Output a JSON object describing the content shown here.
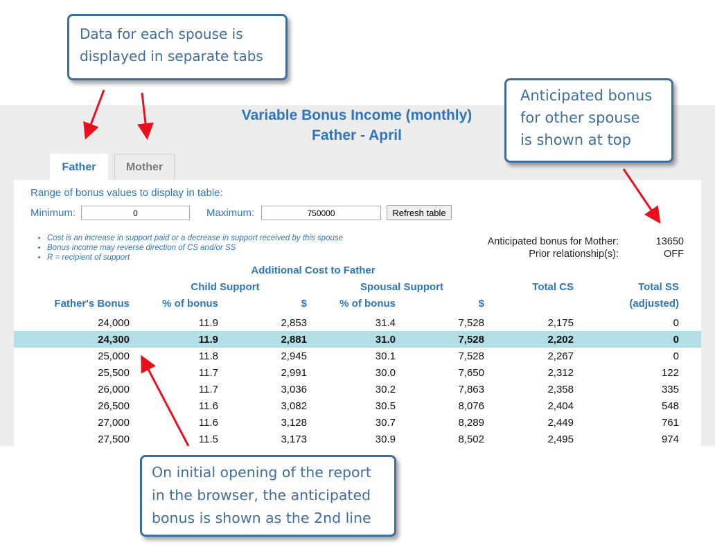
{
  "report": {
    "title_line1": "Variable Bonus Income (monthly)",
    "title_line2": "Father - April"
  },
  "tabs": [
    {
      "label": "Father",
      "active": true
    },
    {
      "label": "Mother",
      "active": false
    }
  ],
  "range": {
    "label": "Range of bonus values to display in table:",
    "min_label": "Minimum:",
    "min_value": "0",
    "max_label": "Maximum:",
    "max_value": "750000",
    "refresh_label": "Refresh table"
  },
  "notes": [
    "Cost is an increase in support paid or a decrease in support received by this spouse",
    "Bonus income may reverse direction of CS and/or SS",
    "R = recipient of support"
  ],
  "anticipated": {
    "bonus_label": "Anticipated bonus for Mother:",
    "bonus_value": "13650",
    "prior_label": "Prior relationship(s):",
    "prior_value": "OFF"
  },
  "table": {
    "group_title": "Additional Cost to Father",
    "child_support": "Child Support",
    "spousal_support": "Spousal Support",
    "total_cs": "Total CS",
    "total_ss": "Total SS",
    "col_bonus": "Father's Bonus",
    "col_cs_pct": "% of bonus",
    "col_cs_amt": "$",
    "col_ss_pct": "% of bonus",
    "col_ss_amt": "$",
    "col_ss_adj": "(adjusted)",
    "rows": [
      {
        "bonus": "24,000",
        "cs_pct": "11.9",
        "cs_amt": "2,853",
        "ss_pct": "31.4",
        "ss_amt": "7,528",
        "total_cs": "2,175",
        "total_ss": "0"
      },
      {
        "bonus": "24,300",
        "cs_pct": "11.9",
        "cs_amt": "2,881",
        "ss_pct": "31.0",
        "ss_amt": "7,528",
        "total_cs": "2,202",
        "total_ss": "0"
      },
      {
        "bonus": "25,000",
        "cs_pct": "11.8",
        "cs_amt": "2,945",
        "ss_pct": "30.1",
        "ss_amt": "7,528",
        "total_cs": "2,267",
        "total_ss": "0"
      },
      {
        "bonus": "25,500",
        "cs_pct": "11.7",
        "cs_amt": "2,991",
        "ss_pct": "30.0",
        "ss_amt": "7,650",
        "total_cs": "2,312",
        "total_ss": "122"
      },
      {
        "bonus": "26,000",
        "cs_pct": "11.7",
        "cs_amt": "3,036",
        "ss_pct": "30.2",
        "ss_amt": "7,863",
        "total_cs": "2,358",
        "total_ss": "335"
      },
      {
        "bonus": "26,500",
        "cs_pct": "11.6",
        "cs_amt": "3,082",
        "ss_pct": "30.5",
        "ss_amt": "8,076",
        "total_cs": "2,404",
        "total_ss": "548"
      },
      {
        "bonus": "27,000",
        "cs_pct": "11.6",
        "cs_amt": "3,128",
        "ss_pct": "30.7",
        "ss_amt": "8,289",
        "total_cs": "2,449",
        "total_ss": "761"
      },
      {
        "bonus": "27,500",
        "cs_pct": "11.5",
        "cs_amt": "3,173",
        "ss_pct": "30.9",
        "ss_amt": "8,502",
        "total_cs": "2,495",
        "total_ss": "974"
      }
    ],
    "highlight_row": 1
  },
  "callouts": {
    "tabs": [
      "Data for each spouse is",
      "displayed in separate tabs"
    ],
    "bonus": [
      "Anticipated bonus",
      "for other spouse",
      "is shown at top"
    ],
    "initial": [
      "On initial opening of the report",
      "in the browser, the anticipated",
      "bonus is shown as the 2nd line"
    ]
  },
  "colors": {
    "accent_blue": "#2d75c0",
    "highlight_row": "#b2dfe6",
    "callout_border": "#3a6e9e",
    "arrow_red": "#e8101c",
    "band_gray": "#ededed"
  }
}
